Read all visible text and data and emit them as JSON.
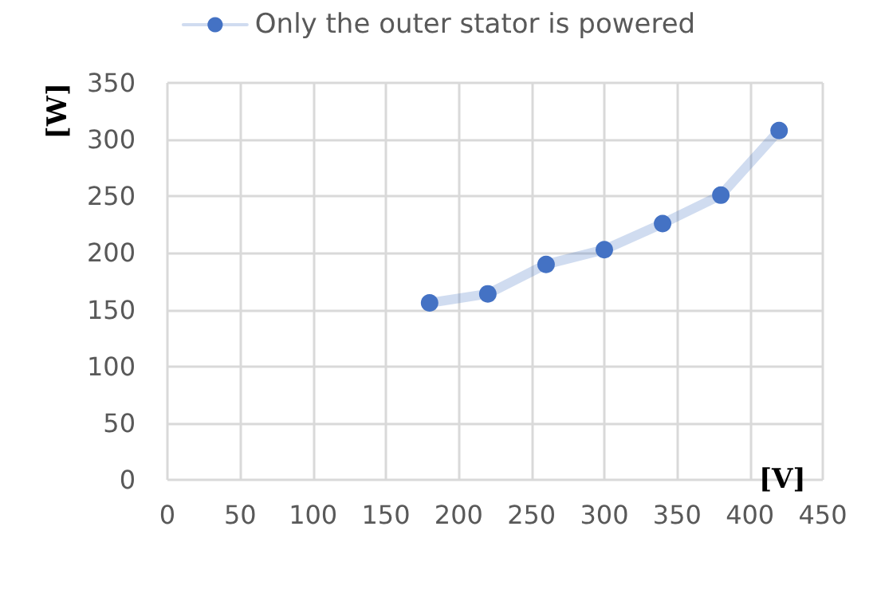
{
  "chart_data": {
    "type": "line",
    "xlabel": "[V]",
    "ylabel": "[W]",
    "x": [
      180,
      220,
      260,
      300,
      340,
      380,
      420
    ],
    "series": [
      {
        "name": "Only the outer stator is powered",
        "color": "#4472c4",
        "values": [
          156,
          164,
          190,
          203,
          226,
          251,
          308
        ]
      }
    ],
    "xlim": [
      0,
      450
    ],
    "xticks": [
      0,
      50,
      100,
      150,
      200,
      250,
      300,
      350,
      400,
      450
    ],
    "ylim": [
      0,
      350
    ],
    "yticks": [
      0,
      50,
      100,
      150,
      200,
      250,
      300,
      350
    ],
    "grid": true,
    "legend": "top",
    "marker": "circle",
    "line_style": "solid"
  }
}
